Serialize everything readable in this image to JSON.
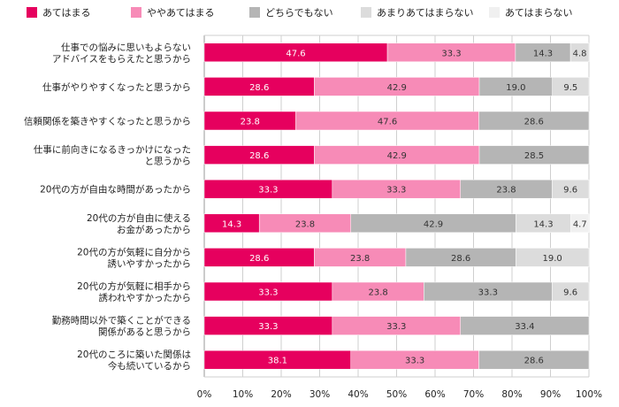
{
  "chart_data": {
    "type": "bar",
    "orientation": "horizontal",
    "stacked": true,
    "title": "",
    "xlabel": "",
    "ylabel": "",
    "xlim": [
      0,
      100
    ],
    "x_ticks": [
      "0%",
      "10%",
      "20%",
      "30%",
      "40%",
      "50%",
      "60%",
      "70%",
      "80%",
      "90%",
      "100%"
    ],
    "legend_position": "top",
    "grid": true,
    "categories": [
      [
        "仕事での悩みに思いもよらない",
        "アドバイスをもらえたと思うから"
      ],
      [
        "仕事がやりやすくなったと思うから"
      ],
      [
        "信頼関係を築きやすくなったと思うから"
      ],
      [
        "仕事に前向きになるきっかけになった",
        "と思うから"
      ],
      [
        "20代の方が自由な時間があったから"
      ],
      [
        "20代の方が自由に使える",
        "お金があったから"
      ],
      [
        "20代の方が気軽に自分から",
        "誘いやすかったから"
      ],
      [
        "20代の方が気軽に相手から",
        "誘われやすかったから"
      ],
      [
        "勤務時間以外で築くことができる",
        "関係があると思うから"
      ],
      [
        "20代のころに築いた関係は",
        "今も続いているから"
      ]
    ],
    "series": [
      {
        "name": "あてはまる",
        "color": "#e6005e",
        "label_color": "#ffffff",
        "values": [
          47.6,
          28.6,
          23.8,
          28.6,
          33.3,
          14.3,
          28.6,
          33.3,
          33.3,
          38.1
        ]
      },
      {
        "name": "ややあてはまる",
        "color": "#f78bb7",
        "label_color": "#333333",
        "values": [
          33.3,
          42.9,
          47.6,
          42.9,
          33.3,
          23.8,
          23.8,
          23.8,
          33.3,
          33.3
        ]
      },
      {
        "name": "どちらでもない",
        "color": "#b5b5b5",
        "label_color": "#333333",
        "values": [
          14.3,
          19.0,
          28.6,
          28.5,
          23.8,
          42.9,
          28.6,
          33.3,
          33.4,
          28.6
        ]
      },
      {
        "name": "あまりあてはまらない",
        "color": "#dcdcdc",
        "label_color": "#333333",
        "values": [
          4.8,
          9.5,
          null,
          null,
          9.6,
          14.3,
          19.0,
          9.6,
          null,
          null
        ]
      },
      {
        "name": "あてはまらない",
        "color": "#f0f0f0",
        "label_color": "#333333",
        "values": [
          null,
          null,
          null,
          null,
          null,
          4.7,
          null,
          null,
          null,
          null
        ]
      }
    ]
  }
}
